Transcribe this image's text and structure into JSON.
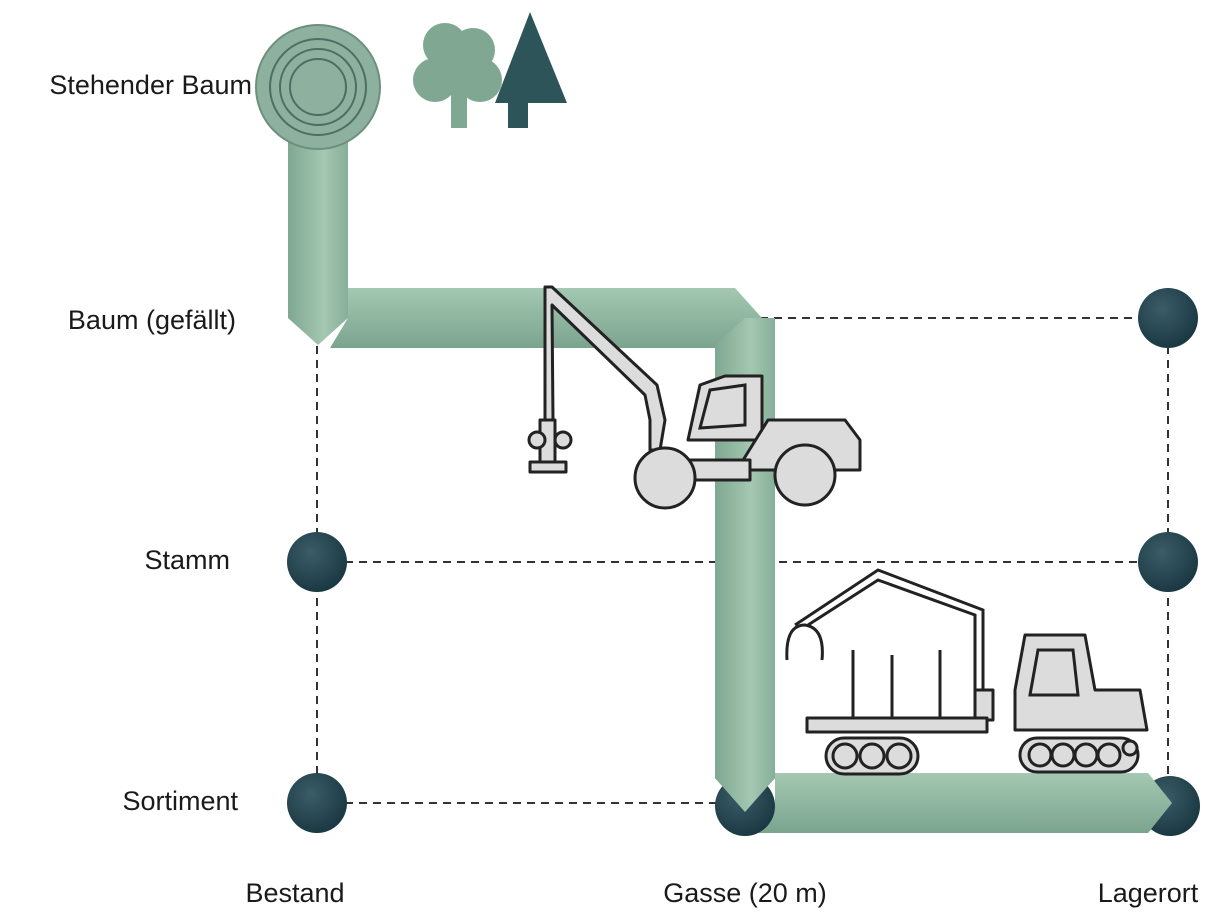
{
  "row_labels": [
    "Stehender Baum",
    "Baum (gefällt)",
    "Stamm",
    "Sortiment"
  ],
  "column_labels": [
    "Bestand",
    "Gasse (20 m)",
    "Lagerort"
  ]
}
